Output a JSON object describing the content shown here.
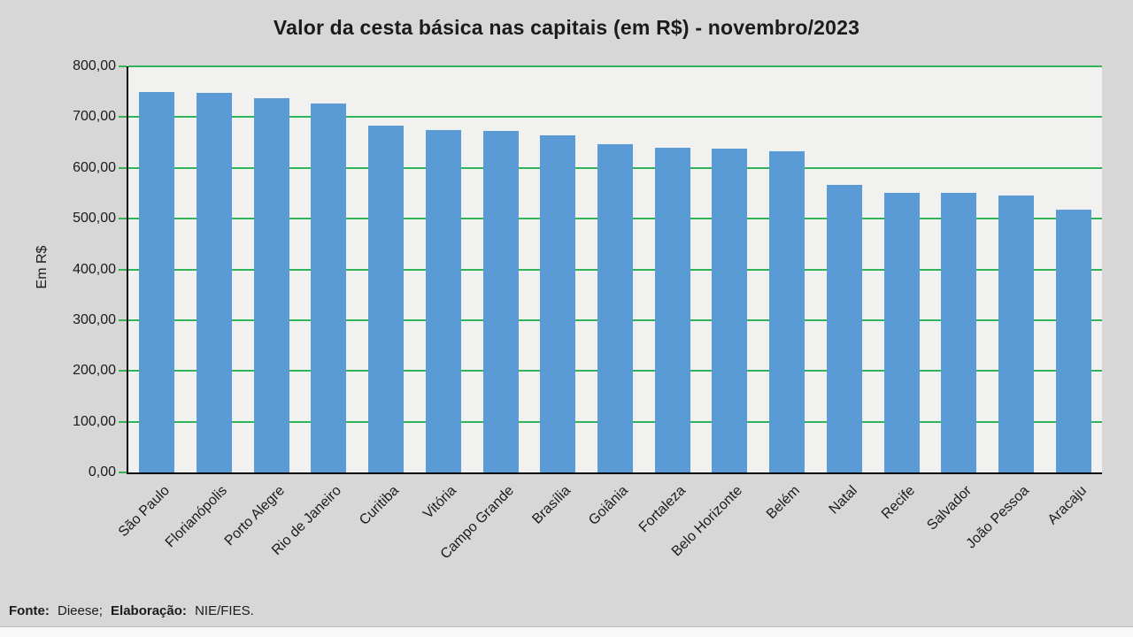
{
  "title": "Valor da cesta básica nas capitais (em R$) - novembro/2023",
  "footer": {
    "fonte_label": "Fonte:",
    "fonte_value": "Dieese;",
    "elaboracao_label": "Elaboração:",
    "elaboracao_value": "NIE/FIES."
  },
  "colors": {
    "background": "#D7D7D7",
    "plot_background": "#F1F1F0",
    "gridline": "#2FB45A",
    "bar": "#5B9BD5",
    "axis": "#000000",
    "text": "#1B1B1B"
  },
  "chart_data": {
    "type": "bar",
    "title": "Valor da cesta básica nas capitais (em R$) - novembro/2023",
    "xlabel": "",
    "ylabel": "Em R$",
    "ylim": [
      0,
      800
    ],
    "ytick_step": 100,
    "ytick_labels": [
      "0,00",
      "100,00",
      "200,00",
      "300,00",
      "400,00",
      "500,00",
      "600,00",
      "700,00",
      "800,00"
    ],
    "grid": true,
    "legend": false,
    "categories": [
      "São Paulo",
      "Florianópolis",
      "Porto Alegre",
      "Rio de Janeiro",
      "Curitiba",
      "Vitória",
      "Campo Grande",
      "Brasília",
      "Goiânia",
      "Fortaleza",
      "Belo Horizonte",
      "Belém",
      "Natal",
      "Recife",
      "Salvador",
      "João Pessoa",
      "Aracaju"
    ],
    "values": [
      750,
      748,
      738,
      727,
      684,
      675,
      673,
      665,
      647,
      639,
      638,
      633,
      566,
      550,
      550,
      546,
      517
    ],
    "source_note": "Fonte: Dieese; Elaboração: NIE/FIES."
  }
}
